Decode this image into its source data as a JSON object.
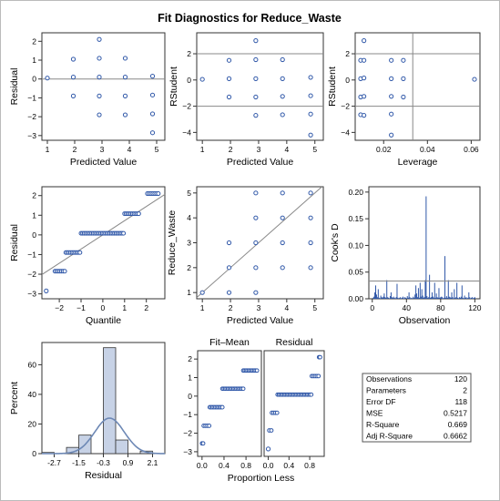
{
  "chart_data": {
    "type": "panel",
    "title": "Fit Diagnostics for Reduce_Waste",
    "panels": [
      {
        "type": "scatter",
        "xlabel": "Predicted Value",
        "ylabel": "Residual",
        "xlim": [
          0.8,
          5.3
        ],
        "ylim": [
          -3.25,
          2.45
        ],
        "xticks": [
          1,
          2,
          3,
          4,
          5
        ],
        "yticks": [
          -3,
          -2,
          -1,
          0,
          1,
          2
        ],
        "reflines_y": [
          0
        ],
        "points": [
          [
            1.0,
            0.05
          ],
          [
            1.95,
            1.05
          ],
          [
            1.95,
            0.1
          ],
          [
            1.95,
            -0.9
          ],
          [
            2.9,
            2.1
          ],
          [
            2.9,
            1.1
          ],
          [
            2.9,
            0.1
          ],
          [
            2.9,
            -0.9
          ],
          [
            2.9,
            -1.9
          ],
          [
            3.85,
            1.1
          ],
          [
            3.85,
            0.1
          ],
          [
            3.85,
            -0.9
          ],
          [
            3.85,
            -1.9
          ],
          [
            4.85,
            0.15
          ],
          [
            4.85,
            -0.85
          ],
          [
            4.85,
            -1.85
          ],
          [
            4.85,
            -2.85
          ]
        ]
      },
      {
        "type": "scatter",
        "xlabel": "Predicted Value",
        "ylabel": "RStudent",
        "xlim": [
          0.8,
          5.3
        ],
        "ylim": [
          -4.6,
          3.6
        ],
        "xticks": [
          1,
          2,
          3,
          4,
          5
        ],
        "yticks": [
          -4,
          -2,
          0,
          2
        ],
        "reflines_y": [
          -2,
          2
        ],
        "points": [
          [
            1.0,
            0.05
          ],
          [
            1.95,
            1.5
          ],
          [
            1.95,
            0.1
          ],
          [
            1.95,
            -1.3
          ],
          [
            2.9,
            3.0
          ],
          [
            2.9,
            1.55
          ],
          [
            2.9,
            0.1
          ],
          [
            2.9,
            -1.3
          ],
          [
            2.9,
            -2.7
          ],
          [
            3.85,
            1.55
          ],
          [
            3.85,
            0.1
          ],
          [
            3.85,
            -1.25
          ],
          [
            3.85,
            -2.65
          ],
          [
            4.85,
            0.2
          ],
          [
            4.85,
            -1.2
          ],
          [
            4.85,
            -2.6
          ],
          [
            4.85,
            -4.2
          ]
        ]
      },
      {
        "type": "scatter",
        "xlabel": "Leverage",
        "ylabel": "RStudent",
        "xlim": [
          0.007,
          0.064
        ],
        "ylim": [
          -4.6,
          3.6
        ],
        "xticks": [
          0.02,
          0.04,
          0.06
        ],
        "xticklabels": [
          "0.02",
          "0.04",
          "0.06"
        ],
        "yticks": [
          -4,
          -2,
          0,
          2
        ],
        "reflines_y": [
          -2,
          2
        ],
        "reflines_x": [
          0.0333
        ],
        "points": [
          [
            0.0095,
            1.5
          ],
          [
            0.0095,
            0.1
          ],
          [
            0.0095,
            -1.3
          ],
          [
            0.0095,
            -2.65
          ],
          [
            0.011,
            3.0
          ],
          [
            0.011,
            1.5
          ],
          [
            0.011,
            0.15
          ],
          [
            0.011,
            -1.25
          ],
          [
            0.011,
            -2.7
          ],
          [
            0.0235,
            1.5
          ],
          [
            0.0235,
            0.1
          ],
          [
            0.0235,
            -1.25
          ],
          [
            0.0235,
            -2.6
          ],
          [
            0.0235,
            -4.2
          ],
          [
            0.029,
            1.5
          ],
          [
            0.029,
            0.1
          ],
          [
            0.029,
            -1.3
          ],
          [
            0.0615,
            0.05
          ]
        ]
      },
      {
        "type": "qq",
        "xlabel": "Quantile",
        "ylabel": "Residual",
        "xlim": [
          -2.8,
          2.85
        ],
        "ylim": [
          -3.25,
          2.45
        ],
        "xticks": [
          -2,
          -1,
          0,
          1,
          2
        ],
        "yticks": [
          -3,
          -2,
          -1,
          0,
          1,
          2
        ],
        "refline": [
          [
            -2.8,
            -2.02
          ],
          [
            2.85,
            2.06
          ]
        ],
        "groups": [
          {
            "value": -2.85,
            "q_from": -2.6,
            "q_to": -2.6
          },
          {
            "value": -1.85,
            "q_from": -2.2,
            "q_to": -1.75
          },
          {
            "value": -0.9,
            "q_from": -1.7,
            "q_to": -1.05
          },
          {
            "value": 0.08,
            "q_from": -1.0,
            "q_to": 0.95
          },
          {
            "value": 1.08,
            "q_from": 1.0,
            "q_to": 1.65
          },
          {
            "value": 2.1,
            "q_from": 2.05,
            "q_to": 2.55
          }
        ]
      },
      {
        "type": "scatter",
        "xlabel": "Predicted Value",
        "ylabel": "Reduce_Waste",
        "xlim": [
          0.8,
          5.3
        ],
        "ylim": [
          0.75,
          5.25
        ],
        "xticks": [
          1,
          2,
          3,
          4,
          5
        ],
        "yticks": [
          1,
          2,
          3,
          4,
          5
        ],
        "refline": [
          [
            0.8,
            0.8
          ],
          [
            5.25,
            5.25
          ]
        ],
        "points": [
          [
            1.0,
            1
          ],
          [
            1.95,
            3
          ],
          [
            1.95,
            2
          ],
          [
            1.95,
            1
          ],
          [
            2.9,
            5
          ],
          [
            2.9,
            4
          ],
          [
            2.9,
            3
          ],
          [
            2.9,
            2
          ],
          [
            2.9,
            1
          ],
          [
            3.85,
            5
          ],
          [
            3.85,
            4
          ],
          [
            3.85,
            3
          ],
          [
            3.85,
            2
          ],
          [
            4.85,
            5
          ],
          [
            4.85,
            4
          ],
          [
            4.85,
            3
          ],
          [
            4.85,
            2
          ]
        ]
      },
      {
        "type": "needle",
        "xlabel": "Observation",
        "ylabel": "Cook's D",
        "xlim": [
          -4,
          126
        ],
        "ylim": [
          0,
          0.21
        ],
        "xticks": [
          0,
          40,
          80,
          120
        ],
        "yticks": [
          0.0,
          0.05,
          0.1,
          0.15,
          0.2
        ],
        "yticklabels": [
          "0.00",
          "0.05",
          "0.10",
          "0.15",
          "0.20"
        ],
        "reflines_y": [
          0.0333
        ],
        "values": [
          0.002,
          0.004,
          0.012,
          0.025,
          0.008,
          0.003,
          0.018,
          0.002,
          0.001,
          0.006,
          0.003,
          0.002,
          0.004,
          0.01,
          0.003,
          0.002,
          0.035,
          0.003,
          0.002,
          0.001,
          0.005,
          0.012,
          0.003,
          0.002,
          0.004,
          0.002,
          0.001,
          0.003,
          0.028,
          0.002,
          0.001,
          0.002,
          0.003,
          0.001,
          0.002,
          0.004,
          0.001,
          0.003,
          0.002,
          0.001,
          0.005,
          0.002,
          0.012,
          0.003,
          0.001,
          0.002,
          0.001,
          0.004,
          0.002,
          0.008,
          0.025,
          0.01,
          0.003,
          0.02,
          0.002,
          0.03,
          0.004,
          0.018,
          0.006,
          0.002,
          0.003,
          0.035,
          0.192,
          0.005,
          0.002,
          0.003,
          0.045,
          0.002,
          0.003,
          0.012,
          0.004,
          0.002,
          0.03,
          0.002,
          0.01,
          0.003,
          0.002,
          0.02,
          0.002,
          0.003,
          0.004,
          0.003,
          0.001,
          0.002,
          0.08,
          0.002,
          0.005,
          0.002,
          0.035,
          0.004,
          0.003,
          0.002,
          0.012,
          0.003,
          0.001,
          0.018,
          0.002,
          0.003,
          0.03,
          0.002,
          0.001,
          0.003,
          0.002,
          0.004,
          0.025,
          0.002,
          0.001,
          0.006,
          0.002,
          0.003,
          0.001,
          0.002,
          0.012,
          0.003,
          0.001,
          0.002,
          0.003,
          0.001,
          0.002,
          0.003
        ]
      },
      {
        "type": "histogram",
        "xlabel": "Residual",
        "ylabel": "Percent",
        "xlim": [
          -3.3,
          2.7
        ],
        "ylim": [
          0,
          75
        ],
        "xticks": [
          -2.7,
          -1.5,
          -0.3,
          0.9,
          2.1
        ],
        "xticklabels": [
          "-2.7",
          "-1.5",
          "-0.3",
          "0.9",
          "2.1"
        ],
        "yticks": [
          0,
          20,
          40,
          60
        ],
        "bins": [
          [
            -3.3,
            -2.7,
            0.8
          ],
          [
            -2.1,
            -1.5,
            4.2
          ],
          [
            -1.5,
            -0.9,
            12.5
          ],
          [
            -0.9,
            -0.3,
            0
          ],
          [
            -0.3,
            0.3,
            71.5
          ],
          [
            0.3,
            0.9,
            9.2
          ],
          [
            1.5,
            2.1,
            1.7
          ]
        ],
        "normal_curve": {
          "mean": 0,
          "sd": 0.722,
          "scale": 24
        }
      },
      {
        "type": "rf_spread",
        "xlabel": "Proportion Less",
        "panels": [
          "Fit–Mean",
          "Residual"
        ],
        "ylim": [
          -3.25,
          2.45
        ],
        "yticks": [
          -3,
          -2,
          -1,
          0,
          1,
          2
        ],
        "xticks": [
          0.0,
          0.4,
          0.8
        ],
        "xticklabels": [
          "0.0",
          "0.4",
          "0.8"
        ],
        "fit_mean_groups": [
          [
            -2.55,
            0.0,
            0.02
          ],
          [
            -1.6,
            0.03,
            0.13
          ],
          [
            -0.6,
            0.14,
            0.37
          ],
          [
            0.4,
            0.37,
            0.75
          ],
          [
            1.38,
            0.75,
            1.0
          ]
        ],
        "residual_groups": [
          [
            -2.85,
            0.0,
            0.0
          ],
          [
            -1.85,
            0.02,
            0.06
          ],
          [
            -0.9,
            0.07,
            0.17
          ],
          [
            0.08,
            0.18,
            0.83
          ],
          [
            1.08,
            0.84,
            0.97
          ],
          [
            2.1,
            0.98,
            1.0
          ]
        ]
      }
    ],
    "stats": [
      {
        "label": "Observations",
        "value": "120"
      },
      {
        "label": "Parameters",
        "value": "2"
      },
      {
        "label": "Error DF",
        "value": "118"
      },
      {
        "label": "MSE",
        "value": "0.5217"
      },
      {
        "label": "R-Square",
        "value": "0.669"
      },
      {
        "label": "Adj R-Square",
        "value": "0.6662"
      }
    ]
  }
}
